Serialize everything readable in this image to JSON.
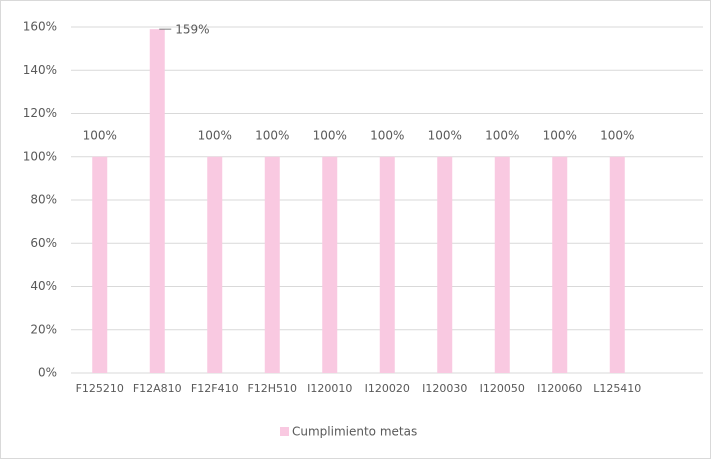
{
  "chart_data": {
    "type": "bar",
    "categories": [
      "F125210",
      "F12A810",
      "F12F410",
      "F12H510",
      "I120010",
      "I120020",
      "I120030",
      "I120050",
      "I120060",
      "L125410"
    ],
    "series": [
      {
        "name": "Cumplimiento metas",
        "color": "#f9c9e1",
        "values": [
          100,
          159,
          100,
          100,
          100,
          100,
          100,
          100,
          100,
          100
        ],
        "value_labels": [
          "100%",
          "159%",
          "100%",
          "100%",
          "100%",
          "100%",
          "100%",
          "100%",
          "100%",
          "100%"
        ]
      }
    ],
    "ylim": [
      0,
      160
    ],
    "yticks": [
      {
        "value": 0,
        "label": "0%"
      },
      {
        "value": 20,
        "label": "20%"
      },
      {
        "value": 40,
        "label": "40%"
      },
      {
        "value": 60,
        "label": "60%"
      },
      {
        "value": 80,
        "label": "80%"
      },
      {
        "value": 100,
        "label": "100%"
      },
      {
        "value": 120,
        "label": "120%"
      },
      {
        "value": 140,
        "label": "140%"
      },
      {
        "value": 160,
        "label": "160%"
      }
    ],
    "grid": true,
    "legend": "bottom"
  }
}
